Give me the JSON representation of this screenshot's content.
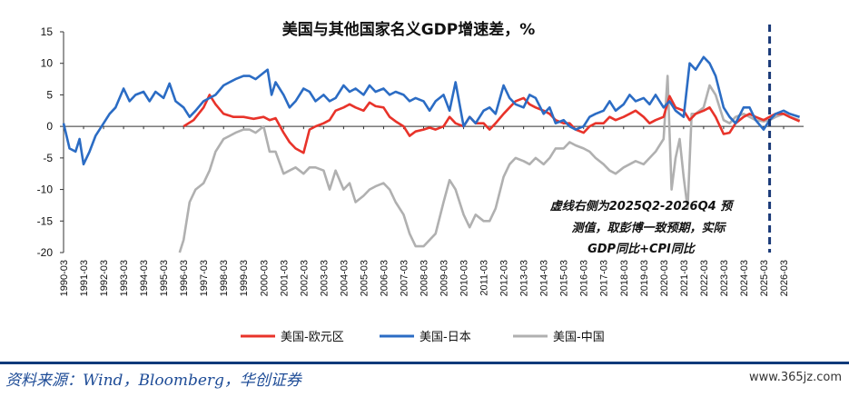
{
  "chart_data": {
    "type": "line",
    "title": "美国与其他国家名义GDP增速差，%",
    "ylim": [
      -20,
      15
    ],
    "yticks": [
      15,
      10,
      5,
      0,
      -5,
      -10,
      -15,
      -20
    ],
    "x_start_year": 1990,
    "x_end_year": 2026,
    "x_tick_labels": [
      "1990-03",
      "1991-03",
      "1992-03",
      "1993-03",
      "1994-03",
      "1995-03",
      "1996-03",
      "1997-03",
      "1998-03",
      "1999-03",
      "2000-03",
      "2001-03",
      "2002-03",
      "2003-03",
      "2004-03",
      "2005-03",
      "2006-03",
      "2007-03",
      "2008-03",
      "2009-03",
      "2010-03",
      "2011-03",
      "2012-03",
      "2013-03",
      "2014-03",
      "2015-03",
      "2016-03",
      "2017-03",
      "2018-03",
      "2019-03",
      "2020-03",
      "2021-03",
      "2022-03",
      "2023-03",
      "2024-03",
      "2025-03",
      "2026-03"
    ],
    "forecast_start": "2025Q2",
    "annotation": [
      "虚线右侧为2025Q2-2026Q4 预",
      "测值，取彭博一致预期，实际",
      "GDP同比+CPI同比"
    ],
    "series": [
      {
        "name": "美国-欧元区",
        "color": "#e8332a",
        "points": [
          [
            1996.0,
            0.0
          ],
          [
            1996.5,
            1.0
          ],
          [
            1997.0,
            3.0
          ],
          [
            1997.3,
            5.0
          ],
          [
            1997.6,
            3.5
          ],
          [
            1998.0,
            2.0
          ],
          [
            1998.5,
            1.5
          ],
          [
            1999.0,
            1.5
          ],
          [
            1999.5,
            1.2
          ],
          [
            2000.0,
            1.5
          ],
          [
            2000.3,
            1.0
          ],
          [
            2000.6,
            1.3
          ],
          [
            2001.0,
            -1.0
          ],
          [
            2001.3,
            -2.5
          ],
          [
            2001.6,
            -3.5
          ],
          [
            2002.0,
            -4.2
          ],
          [
            2002.3,
            -0.5
          ],
          [
            2002.6,
            0.0
          ],
          [
            2003.0,
            0.5
          ],
          [
            2003.3,
            1.0
          ],
          [
            2003.6,
            2.5
          ],
          [
            2004.0,
            3.0
          ],
          [
            2004.3,
            3.5
          ],
          [
            2004.6,
            3.0
          ],
          [
            2005.0,
            2.5
          ],
          [
            2005.3,
            3.8
          ],
          [
            2005.6,
            3.2
          ],
          [
            2006.0,
            3.0
          ],
          [
            2006.3,
            1.5
          ],
          [
            2006.6,
            0.8
          ],
          [
            2007.0,
            0.0
          ],
          [
            2007.3,
            -1.5
          ],
          [
            2007.6,
            -0.8
          ],
          [
            2008.0,
            -0.5
          ],
          [
            2008.3,
            -0.2
          ],
          [
            2008.6,
            -0.5
          ],
          [
            2009.0,
            0.0
          ],
          [
            2009.3,
            1.5
          ],
          [
            2009.6,
            0.5
          ],
          [
            2010.0,
            0.0
          ],
          [
            2010.3,
            1.5
          ],
          [
            2010.6,
            0.5
          ],
          [
            2011.0,
            0.5
          ],
          [
            2011.3,
            -0.5
          ],
          [
            2011.6,
            0.5
          ],
          [
            2012.0,
            2.0
          ],
          [
            2012.3,
            3.0
          ],
          [
            2012.6,
            4.0
          ],
          [
            2013.0,
            4.5
          ],
          [
            2013.3,
            3.5
          ],
          [
            2013.6,
            3.0
          ],
          [
            2014.0,
            2.5
          ],
          [
            2014.3,
            2.0
          ],
          [
            2014.6,
            1.0
          ],
          [
            2015.0,
            0.5
          ],
          [
            2015.3,
            0.5
          ],
          [
            2015.6,
            -0.5
          ],
          [
            2016.0,
            -1.0
          ],
          [
            2016.3,
            0.0
          ],
          [
            2016.6,
            0.5
          ],
          [
            2017.0,
            0.5
          ],
          [
            2017.3,
            1.5
          ],
          [
            2017.6,
            1.0
          ],
          [
            2018.0,
            1.5
          ],
          [
            2018.3,
            2.0
          ],
          [
            2018.6,
            2.5
          ],
          [
            2019.0,
            1.5
          ],
          [
            2019.3,
            0.5
          ],
          [
            2019.6,
            1.0
          ],
          [
            2020.0,
            1.5
          ],
          [
            2020.3,
            4.8
          ],
          [
            2020.6,
            3.0
          ],
          [
            2021.0,
            2.5
          ],
          [
            2021.3,
            1.0
          ],
          [
            2021.6,
            2.0
          ],
          [
            2022.0,
            2.5
          ],
          [
            2022.3,
            3.0
          ],
          [
            2022.6,
            1.5
          ],
          [
            2023.0,
            -1.2
          ],
          [
            2023.3,
            -1.0
          ],
          [
            2023.6,
            0.5
          ],
          [
            2024.0,
            1.5
          ],
          [
            2024.3,
            2.0
          ],
          [
            2024.6,
            1.5
          ],
          [
            2025.0,
            1.0
          ],
          [
            2025.3,
            1.5
          ],
          [
            2025.6,
            2.0
          ],
          [
            2026.0,
            2.0
          ],
          [
            2026.3,
            1.5
          ],
          [
            2026.8,
            0.8
          ]
        ]
      },
      {
        "name": "美国-日本",
        "color": "#2b6cc4",
        "points": [
          [
            1990.0,
            0.5
          ],
          [
            1990.3,
            -3.5
          ],
          [
            1990.6,
            -4.0
          ],
          [
            1990.8,
            -2.0
          ],
          [
            1991.0,
            -6.0
          ],
          [
            1991.3,
            -4.0
          ],
          [
            1991.6,
            -1.5
          ],
          [
            1992.0,
            0.5
          ],
          [
            1992.3,
            2.0
          ],
          [
            1992.6,
            3.0
          ],
          [
            1993.0,
            6.0
          ],
          [
            1993.3,
            4.0
          ],
          [
            1993.6,
            5.0
          ],
          [
            1994.0,
            5.5
          ],
          [
            1994.3,
            4.0
          ],
          [
            1994.6,
            5.5
          ],
          [
            1995.0,
            4.5
          ],
          [
            1995.3,
            6.8
          ],
          [
            1995.6,
            4.0
          ],
          [
            1996.0,
            3.0
          ],
          [
            1996.3,
            1.5
          ],
          [
            1996.6,
            2.5
          ],
          [
            1997.0,
            4.0
          ],
          [
            1997.3,
            4.5
          ],
          [
            1997.6,
            5.0
          ],
          [
            1998.0,
            6.5
          ],
          [
            1998.3,
            7.0
          ],
          [
            1998.6,
            7.5
          ],
          [
            1999.0,
            8.0
          ],
          [
            1999.3,
            8.0
          ],
          [
            1999.6,
            7.5
          ],
          [
            2000.0,
            8.5
          ],
          [
            2000.2,
            9.0
          ],
          [
            2000.4,
            5.0
          ],
          [
            2000.6,
            7.0
          ],
          [
            2001.0,
            5.0
          ],
          [
            2001.3,
            3.0
          ],
          [
            2001.6,
            4.0
          ],
          [
            2002.0,
            6.0
          ],
          [
            2002.3,
            5.5
          ],
          [
            2002.6,
            4.0
          ],
          [
            2003.0,
            5.0
          ],
          [
            2003.3,
            4.0
          ],
          [
            2003.6,
            4.5
          ],
          [
            2004.0,
            6.5
          ],
          [
            2004.3,
            5.5
          ],
          [
            2004.6,
            6.0
          ],
          [
            2005.0,
            5.0
          ],
          [
            2005.3,
            6.5
          ],
          [
            2005.6,
            5.5
          ],
          [
            2006.0,
            6.0
          ],
          [
            2006.3,
            5.0
          ],
          [
            2006.6,
            5.5
          ],
          [
            2007.0,
            5.0
          ],
          [
            2007.3,
            4.0
          ],
          [
            2007.6,
            4.5
          ],
          [
            2008.0,
            4.0
          ],
          [
            2008.3,
            2.5
          ],
          [
            2008.6,
            4.0
          ],
          [
            2009.0,
            5.0
          ],
          [
            2009.3,
            2.5
          ],
          [
            2009.6,
            7.0
          ],
          [
            2010.0,
            0.0
          ],
          [
            2010.3,
            1.5
          ],
          [
            2010.6,
            0.5
          ],
          [
            2011.0,
            2.5
          ],
          [
            2011.3,
            3.0
          ],
          [
            2011.6,
            2.0
          ],
          [
            2012.0,
            6.5
          ],
          [
            2012.3,
            4.5
          ],
          [
            2012.6,
            3.5
          ],
          [
            2013.0,
            3.0
          ],
          [
            2013.3,
            5.0
          ],
          [
            2013.6,
            4.5
          ],
          [
            2014.0,
            2.0
          ],
          [
            2014.3,
            3.0
          ],
          [
            2014.6,
            0.5
          ],
          [
            2015.0,
            1.0
          ],
          [
            2015.3,
            0.0
          ],
          [
            2015.6,
            -0.5
          ],
          [
            2016.0,
            0.0
          ],
          [
            2016.3,
            1.5
          ],
          [
            2016.6,
            2.0
          ],
          [
            2017.0,
            2.5
          ],
          [
            2017.3,
            4.0
          ],
          [
            2017.6,
            2.5
          ],
          [
            2018.0,
            3.5
          ],
          [
            2018.3,
            5.0
          ],
          [
            2018.6,
            4.0
          ],
          [
            2019.0,
            4.5
          ],
          [
            2019.3,
            3.5
          ],
          [
            2019.6,
            5.0
          ],
          [
            2020.0,
            3.0
          ],
          [
            2020.3,
            4.0
          ],
          [
            2020.6,
            2.5
          ],
          [
            2021.0,
            1.5
          ],
          [
            2021.3,
            10.0
          ],
          [
            2021.6,
            9.0
          ],
          [
            2022.0,
            11.0
          ],
          [
            2022.3,
            10.0
          ],
          [
            2022.6,
            8.0
          ],
          [
            2023.0,
            3.0
          ],
          [
            2023.3,
            1.5
          ],
          [
            2023.6,
            0.5
          ],
          [
            2024.0,
            3.0
          ],
          [
            2024.3,
            3.0
          ],
          [
            2024.6,
            1.0
          ],
          [
            2025.0,
            -0.5
          ],
          [
            2025.3,
            1.0
          ],
          [
            2025.6,
            2.0
          ],
          [
            2026.0,
            2.5
          ],
          [
            2026.3,
            2.0
          ],
          [
            2026.8,
            1.5
          ]
        ]
      },
      {
        "name": "美国-中国",
        "color": "#b0b0b0",
        "points": [
          [
            1995.8,
            -20.0
          ],
          [
            1996.0,
            -18.0
          ],
          [
            1996.3,
            -12.0
          ],
          [
            1996.6,
            -10.0
          ],
          [
            1997.0,
            -9.0
          ],
          [
            1997.3,
            -7.0
          ],
          [
            1997.6,
            -4.0
          ],
          [
            1998.0,
            -2.0
          ],
          [
            1998.3,
            -1.5
          ],
          [
            1998.6,
            -1.0
          ],
          [
            1999.0,
            -0.5
          ],
          [
            1999.3,
            -0.5
          ],
          [
            1999.6,
            -1.0
          ],
          [
            2000.0,
            0.0
          ],
          [
            2000.3,
            -4.0
          ],
          [
            2000.6,
            -4.0
          ],
          [
            2001.0,
            -7.5
          ],
          [
            2001.3,
            -7.0
          ],
          [
            2001.6,
            -6.5
          ],
          [
            2002.0,
            -7.5
          ],
          [
            2002.3,
            -6.5
          ],
          [
            2002.6,
            -6.5
          ],
          [
            2003.0,
            -7.0
          ],
          [
            2003.3,
            -10.0
          ],
          [
            2003.6,
            -7.0
          ],
          [
            2004.0,
            -10.0
          ],
          [
            2004.3,
            -9.0
          ],
          [
            2004.6,
            -12.0
          ],
          [
            2005.0,
            -11.0
          ],
          [
            2005.3,
            -10.0
          ],
          [
            2005.6,
            -9.5
          ],
          [
            2006.0,
            -9.0
          ],
          [
            2006.3,
            -10.0
          ],
          [
            2006.6,
            -12.0
          ],
          [
            2007.0,
            -14.0
          ],
          [
            2007.3,
            -17.0
          ],
          [
            2007.6,
            -19.0
          ],
          [
            2008.0,
            -19.0
          ],
          [
            2008.3,
            -18.0
          ],
          [
            2008.6,
            -17.0
          ],
          [
            2009.0,
            -12.0
          ],
          [
            2009.3,
            -8.5
          ],
          [
            2009.6,
            -10.0
          ],
          [
            2010.0,
            -14.0
          ],
          [
            2010.3,
            -16.0
          ],
          [
            2010.6,
            -14.0
          ],
          [
            2011.0,
            -15.0
          ],
          [
            2011.3,
            -15.0
          ],
          [
            2011.6,
            -13.0
          ],
          [
            2012.0,
            -8.0
          ],
          [
            2012.3,
            -6.0
          ],
          [
            2012.6,
            -5.0
          ],
          [
            2013.0,
            -5.5
          ],
          [
            2013.3,
            -6.0
          ],
          [
            2013.6,
            -5.0
          ],
          [
            2014.0,
            -6.0
          ],
          [
            2014.3,
            -5.0
          ],
          [
            2014.6,
            -3.5
          ],
          [
            2015.0,
            -3.5
          ],
          [
            2015.3,
            -2.5
          ],
          [
            2015.6,
            -3.0
          ],
          [
            2016.0,
            -3.5
          ],
          [
            2016.3,
            -4.0
          ],
          [
            2016.6,
            -5.0
          ],
          [
            2017.0,
            -6.0
          ],
          [
            2017.3,
            -7.0
          ],
          [
            2017.6,
            -7.5
          ],
          [
            2018.0,
            -6.5
          ],
          [
            2018.3,
            -6.0
          ],
          [
            2018.6,
            -5.5
          ],
          [
            2019.0,
            -6.0
          ],
          [
            2019.3,
            -5.0
          ],
          [
            2019.6,
            -4.0
          ],
          [
            2020.0,
            -2.0
          ],
          [
            2020.2,
            8.0
          ],
          [
            2020.4,
            -10.0
          ],
          [
            2020.6,
            -5.0
          ],
          [
            2020.8,
            -2.0
          ],
          [
            2021.0,
            -8.0
          ],
          [
            2021.2,
            -13.0
          ],
          [
            2021.4,
            2.0
          ],
          [
            2021.6,
            2.0
          ],
          [
            2022.0,
            3.0
          ],
          [
            2022.3,
            6.5
          ],
          [
            2022.6,
            5.0
          ],
          [
            2023.0,
            1.0
          ],
          [
            2023.3,
            0.5
          ],
          [
            2023.6,
            1.5
          ],
          [
            2024.0,
            2.0
          ],
          [
            2024.3,
            1.5
          ],
          [
            2024.6,
            1.0
          ],
          [
            2025.0,
            0.8
          ],
          [
            2025.3,
            1.0
          ],
          [
            2025.6,
            1.5
          ],
          [
            2026.0,
            2.0
          ],
          [
            2026.3,
            1.5
          ],
          [
            2026.8,
            1.0
          ]
        ]
      }
    ],
    "legend_position": "bottom"
  },
  "footer": {
    "source": "资料来源：Wind，Bloomberg，华创证券",
    "site": "www.365jz.com"
  }
}
